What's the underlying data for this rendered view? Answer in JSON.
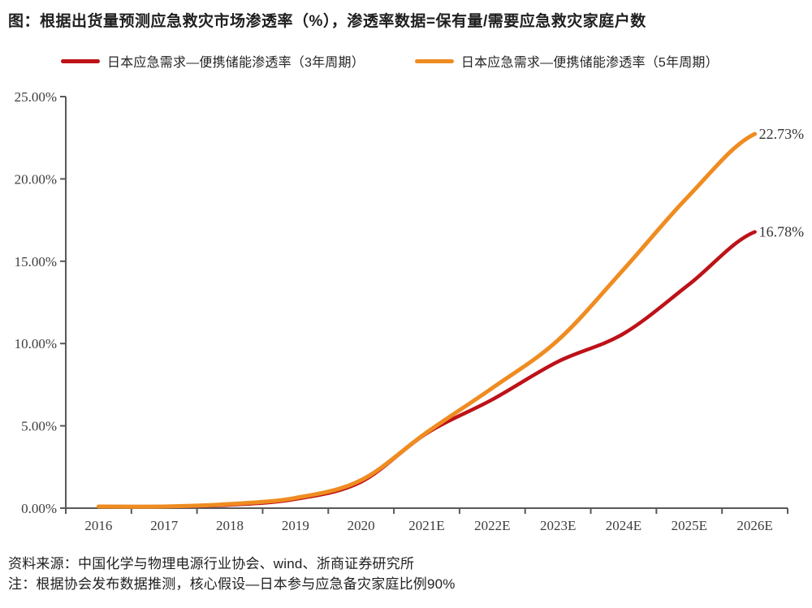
{
  "page": {
    "title": "图：根据出货量预测应急救灾市场渗透率（%），渗透率数据=保有量/需要应急救灾家庭户数",
    "source_note": "资料来源：中国化学与物理电源行业协会、wind、浙商证券研究所",
    "assumption_note": "注：根据协会发布数据推测，核心假设—日本参与应急备灾家庭比例90%"
  },
  "colors": {
    "series_3yr": "#bd1218",
    "series_5yr": "#ef8c21",
    "axis": "#595959",
    "tick_text": "#3d3d3d",
    "end_label_text": "#333333"
  },
  "chart_data": {
    "type": "line",
    "title": "根据出货量预测应急救灾市场渗透率（%）",
    "categories": [
      "2016",
      "2017",
      "2018",
      "2019",
      "2020",
      "2021E",
      "2022E",
      "2023E",
      "2024E",
      "2025E",
      "2026E"
    ],
    "series": [
      {
        "name": "日本应急需求—便携储能渗透率（3年周期）",
        "color": "#bd1218",
        "values": [
          0.01,
          0.05,
          0.2,
          0.55,
          1.6,
          4.55,
          6.6,
          8.9,
          10.6,
          13.6,
          16.78
        ],
        "end_label": "16.78%"
      },
      {
        "name": "日本应急需求—便携储能渗透率（5年周期）",
        "color": "#ef8c21",
        "values": [
          0.01,
          0.06,
          0.25,
          0.62,
          1.7,
          4.6,
          7.3,
          10.2,
          14.5,
          19.0,
          22.73
        ],
        "end_label": "22.73%"
      }
    ],
    "xlabel": "",
    "ylabel": "",
    "ylim": [
      0,
      25
    ],
    "ytick_step": 5,
    "ytick_labels": [
      "0.00%",
      "5.00%",
      "10.00%",
      "15.00%",
      "20.00%",
      "25.00%"
    ],
    "grid": false,
    "legend_position": "top"
  }
}
